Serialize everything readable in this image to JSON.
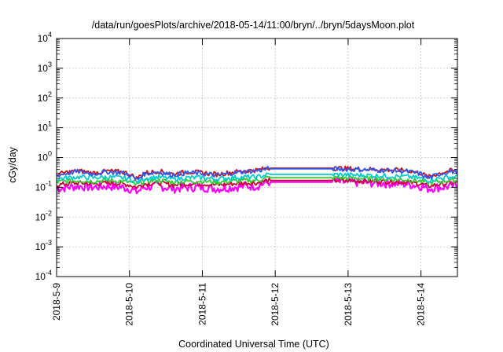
{
  "chart_data": {
    "type": "line",
    "title": "/data/run/goesPlots/archive/2018-05-14/11:00/bryn/../bryn/5daysMoon.plot",
    "xlabel": "Coordinated Universal Time (UTC)",
    "ylabel": "cGy/day",
    "yscale": "log",
    "ylim": [
      0.0001,
      10000
    ],
    "xlim": [
      0,
      5.5
    ],
    "x_unit": "days since 2018-5-9 00:00 UTC",
    "grid": true,
    "legend": "none",
    "x_ticks": [
      {
        "value": 0,
        "label": "2018-5-9"
      },
      {
        "value": 1,
        "label": "2018-5-10"
      },
      {
        "value": 2,
        "label": "2018-5-11"
      },
      {
        "value": 3,
        "label": "2018-5-12"
      },
      {
        "value": 4,
        "label": "2018-5-13"
      },
      {
        "value": 5,
        "label": "2018-5-14"
      }
    ],
    "y_ticks": [
      {
        "value": 0.0001,
        "base": "10",
        "exp": "-4"
      },
      {
        "value": 0.001,
        "base": "10",
        "exp": "-3"
      },
      {
        "value": 0.01,
        "base": "10",
        "exp": "-2"
      },
      {
        "value": 0.1,
        "base": "10",
        "exp": "-1"
      },
      {
        "value": 1,
        "base": "10",
        "exp": "0"
      },
      {
        "value": 10,
        "base": "10",
        "exp": "1"
      },
      {
        "value": 100,
        "base": "10",
        "exp": "2"
      },
      {
        "value": 1000,
        "base": "10",
        "exp": "3"
      },
      {
        "value": 10000,
        "base": "10",
        "exp": "4"
      }
    ],
    "series": [
      {
        "color": "#ff00ff",
        "x": [
          0,
          0.15,
          0.3,
          0.5,
          0.7,
          0.9,
          1.0,
          1.1,
          1.2,
          1.4,
          1.6,
          1.8,
          2.0,
          2.2,
          2.4,
          2.6,
          2.75,
          2.9,
          3.0,
          4.0,
          3.75,
          4.8,
          5.0,
          5.1,
          5.2,
          5.3,
          5.4,
          5.5
        ],
        "y": [
          0.09,
          0.1,
          0.11,
          0.1,
          0.11,
          0.1,
          0.09,
          0.07,
          0.1,
          0.11,
          0.09,
          0.1,
          0.1,
          0.09,
          0.1,
          0.11,
          0.11,
          0.15,
          0.15,
          0.15,
          0.15,
          0.13,
          0.11,
          0.09,
          0.1,
          0.1,
          0.11,
          0.11
        ]
      },
      {
        "color": "#cc0033",
        "x": [
          0,
          0.15,
          0.3,
          0.5,
          0.7,
          0.9,
          1.0,
          1.1,
          1.2,
          1.4,
          1.6,
          1.8,
          2.0,
          2.2,
          2.4,
          2.6,
          2.75,
          2.9,
          3.0,
          3.75,
          3.8,
          4.8,
          5.0,
          5.1,
          5.2,
          5.3,
          5.4,
          5.5
        ],
        "y": [
          0.12,
          0.13,
          0.14,
          0.13,
          0.14,
          0.13,
          0.12,
          0.1,
          0.13,
          0.14,
          0.12,
          0.13,
          0.13,
          0.12,
          0.13,
          0.14,
          0.14,
          0.17,
          0.17,
          0.17,
          0.17,
          0.15,
          0.13,
          0.11,
          0.12,
          0.13,
          0.14,
          0.14
        ]
      },
      {
        "color": "#33cc33",
        "x": [
          0,
          0.15,
          0.3,
          0.5,
          0.7,
          0.9,
          1.0,
          1.1,
          1.2,
          1.4,
          1.6,
          1.8,
          2.0,
          2.2,
          2.4,
          2.6,
          2.75,
          2.9,
          3.0,
          3.75,
          3.8,
          4.8,
          5.0,
          5.1,
          5.2,
          5.3,
          5.4,
          5.5
        ],
        "y": [
          0.15,
          0.16,
          0.17,
          0.16,
          0.17,
          0.16,
          0.15,
          0.12,
          0.16,
          0.17,
          0.15,
          0.16,
          0.16,
          0.15,
          0.16,
          0.17,
          0.17,
          0.21,
          0.21,
          0.21,
          0.21,
          0.18,
          0.16,
          0.14,
          0.15,
          0.16,
          0.17,
          0.17
        ]
      },
      {
        "color": "#00cccc",
        "x": [
          0,
          0.15,
          0.3,
          0.5,
          0.7,
          0.9,
          1.0,
          1.1,
          1.2,
          1.4,
          1.6,
          1.8,
          2.0,
          2.2,
          2.4,
          2.6,
          2.75,
          2.9,
          3.0,
          3.75,
          3.8,
          4.8,
          5.0,
          5.1,
          5.2,
          5.3,
          5.4,
          5.5
        ],
        "y": [
          0.19,
          0.21,
          0.22,
          0.21,
          0.22,
          0.21,
          0.19,
          0.15,
          0.2,
          0.22,
          0.19,
          0.21,
          0.21,
          0.19,
          0.21,
          0.22,
          0.22,
          0.27,
          0.27,
          0.27,
          0.27,
          0.23,
          0.2,
          0.17,
          0.19,
          0.21,
          0.22,
          0.22
        ]
      },
      {
        "color": "#cc1111",
        "x": [
          0,
          0.15,
          0.3,
          0.5,
          0.7,
          0.9,
          1.0,
          1.1,
          1.2,
          1.4,
          1.6,
          1.8,
          2.0,
          2.2,
          2.4,
          2.6,
          2.75,
          2.9,
          3.0,
          3.75,
          3.8,
          4.8,
          5.0,
          5.1,
          5.2,
          5.3,
          5.4,
          5.5
        ],
        "y": [
          0.27,
          0.32,
          0.36,
          0.3,
          0.35,
          0.33,
          0.28,
          0.2,
          0.3,
          0.35,
          0.28,
          0.33,
          0.31,
          0.27,
          0.32,
          0.36,
          0.38,
          0.44,
          0.44,
          0.44,
          0.44,
          0.37,
          0.3,
          0.22,
          0.27,
          0.32,
          0.36,
          0.35
        ]
      },
      {
        "color": "#3355ee",
        "x": [
          0,
          0.15,
          0.3,
          0.5,
          0.7,
          0.9,
          1.0,
          1.1,
          1.2,
          1.4,
          1.6,
          1.8,
          2.0,
          2.2,
          2.4,
          2.6,
          2.75,
          2.9,
          3.0,
          3.75,
          3.8,
          4.8,
          5.0,
          5.1,
          5.2,
          5.3,
          5.4,
          5.5
        ],
        "y": [
          0.25,
          0.3,
          0.34,
          0.28,
          0.33,
          0.31,
          0.26,
          0.18,
          0.28,
          0.33,
          0.26,
          0.31,
          0.29,
          0.25,
          0.3,
          0.34,
          0.36,
          0.42,
          0.42,
          0.42,
          0.42,
          0.35,
          0.28,
          0.2,
          0.25,
          0.3,
          0.34,
          0.33
        ]
      }
    ]
  }
}
